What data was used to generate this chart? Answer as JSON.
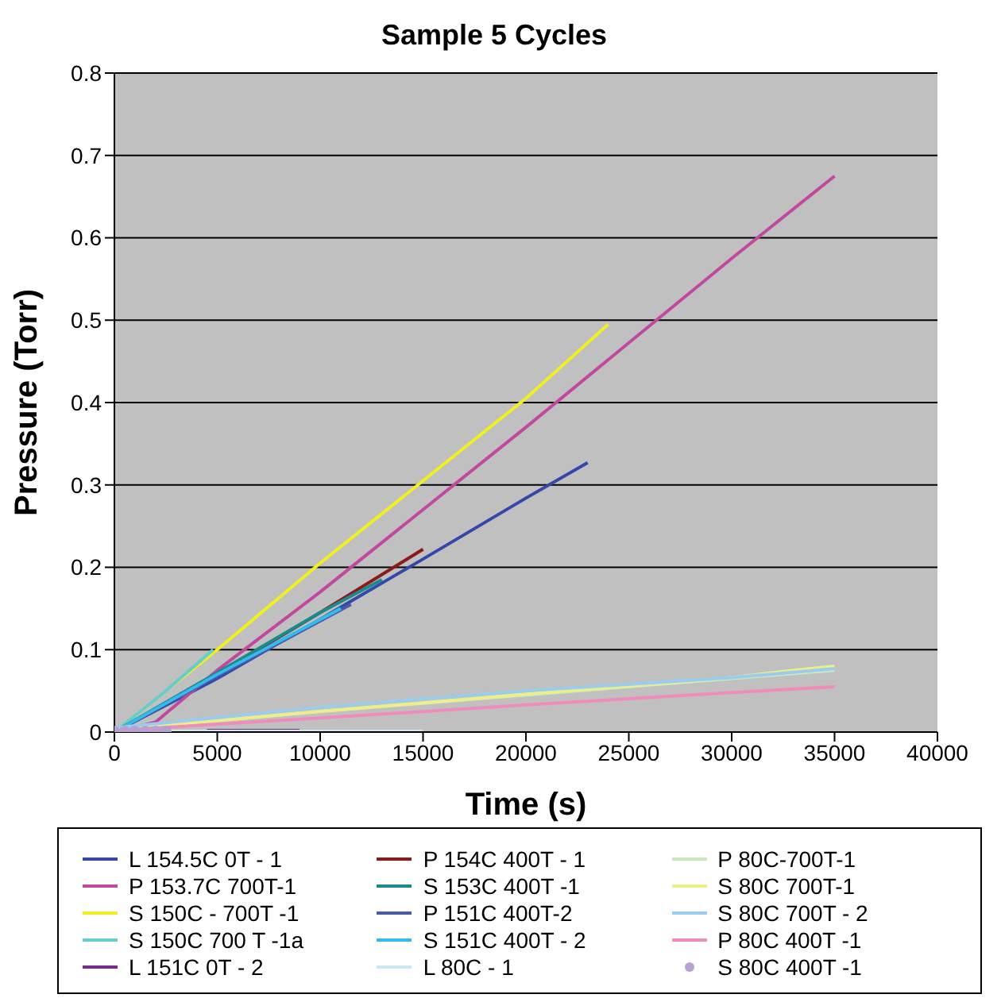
{
  "chart_data": {
    "type": "line",
    "title": "Sample 5 Cycles",
    "xlabel": "Time (s)",
    "ylabel": "Pressure (Torr)",
    "xlim": [
      0,
      40000
    ],
    "xticks": [
      0,
      5000,
      10000,
      15000,
      20000,
      25000,
      30000,
      35000,
      40000
    ],
    "ylim": [
      0,
      0.8
    ],
    "yticks": [
      0,
      0.1,
      0.2,
      0.3,
      0.4,
      0.5,
      0.6,
      0.7,
      0.8
    ],
    "grid": "y",
    "legend": "bottom",
    "marker": "none",
    "series": [
      {
        "name": "L 154.5C 0T - 1",
        "color": "#3348a8",
        "x": [
          0,
          5000,
          10000,
          15000,
          20000,
          23000
        ],
        "values": [
          0,
          0.065,
          0.137,
          0.21,
          0.284,
          0.327
        ]
      },
      {
        "name": "P 153.7C 700T-1",
        "color": "#c0489e",
        "x": [
          0,
          2000,
          5000,
          10000,
          20000,
          30000,
          35000
        ],
        "values": [
          0,
          0.012,
          0.075,
          0.17,
          0.37,
          0.575,
          0.675
        ]
      },
      {
        "name": "S 150C - 700T -1",
        "color": "#f0f020",
        "x": [
          0,
          5000,
          10000,
          15000,
          20000,
          24000
        ],
        "values": [
          0,
          0.1,
          0.205,
          0.305,
          0.405,
          0.495
        ]
      },
      {
        "name": "S 150C 700 T -1a",
        "color": "#66cccc",
        "x": [
          0,
          2500,
          4800
        ],
        "values": [
          0,
          0.05,
          0.1
        ]
      },
      {
        "name": "L 151C 0T - 2",
        "color": "#7a2a8a",
        "x": [
          4500,
          9000
        ],
        "values": [
          0.002,
          0.002
        ]
      },
      {
        "name": "P 154C 400T - 1",
        "color": "#8b1a1a",
        "x": [
          0,
          5000,
          10000,
          15000
        ],
        "values": [
          0,
          0.07,
          0.145,
          0.222
        ]
      },
      {
        "name": "S 153C 400T -1",
        "color": "#1a8a8a",
        "x": [
          0,
          5000,
          10000,
          13000
        ],
        "values": [
          0,
          0.072,
          0.145,
          0.185
        ]
      },
      {
        "name": "P 151C 400T-2",
        "color": "#4a5aa8",
        "x": [
          0,
          5000,
          11500
        ],
        "values": [
          0,
          0.068,
          0.155
        ]
      },
      {
        "name": "S 151C 400T - 2",
        "color": "#33bbee",
        "x": [
          0,
          5000,
          11000
        ],
        "values": [
          0,
          0.07,
          0.15
        ]
      },
      {
        "name": "L 80C - 1",
        "color": "#cde8ee",
        "x": [
          0,
          15000
        ],
        "values": [
          0.001,
          0.001
        ]
      },
      {
        "name": "P 80C-700T-1",
        "color": "#cde8c0",
        "x": [
          0,
          10000,
          20000,
          30000,
          35000
        ],
        "values": [
          0.003,
          0.025,
          0.045,
          0.065,
          0.075
        ]
      },
      {
        "name": "S 80C 700T-1",
        "color": "#eeee88",
        "x": [
          0,
          10000,
          20000,
          30000,
          33000,
          35000
        ],
        "values": [
          0.003,
          0.025,
          0.046,
          0.066,
          0.075,
          0.08
        ]
      },
      {
        "name": "S 80C 700T - 2",
        "color": "#99ccee",
        "x": [
          0,
          10000,
          20000,
          30000,
          35000
        ],
        "values": [
          0.005,
          0.03,
          0.05,
          0.066,
          0.077
        ]
      },
      {
        "name": "P 80C 400T -1",
        "color": "#f08cbc",
        "x": [
          0,
          10000,
          20000,
          30000,
          35000
        ],
        "values": [
          0.002,
          0.017,
          0.033,
          0.048,
          0.055
        ]
      },
      {
        "name": "S 80C 400T -1",
        "color": "#b8a0d0",
        "type": "scatter",
        "marker": "circle",
        "x": [
          0,
          500,
          1000,
          1500,
          2000,
          2500
        ],
        "values": [
          0.001,
          0.001,
          0.001,
          0.001,
          0.001,
          0.001
        ]
      }
    ]
  }
}
